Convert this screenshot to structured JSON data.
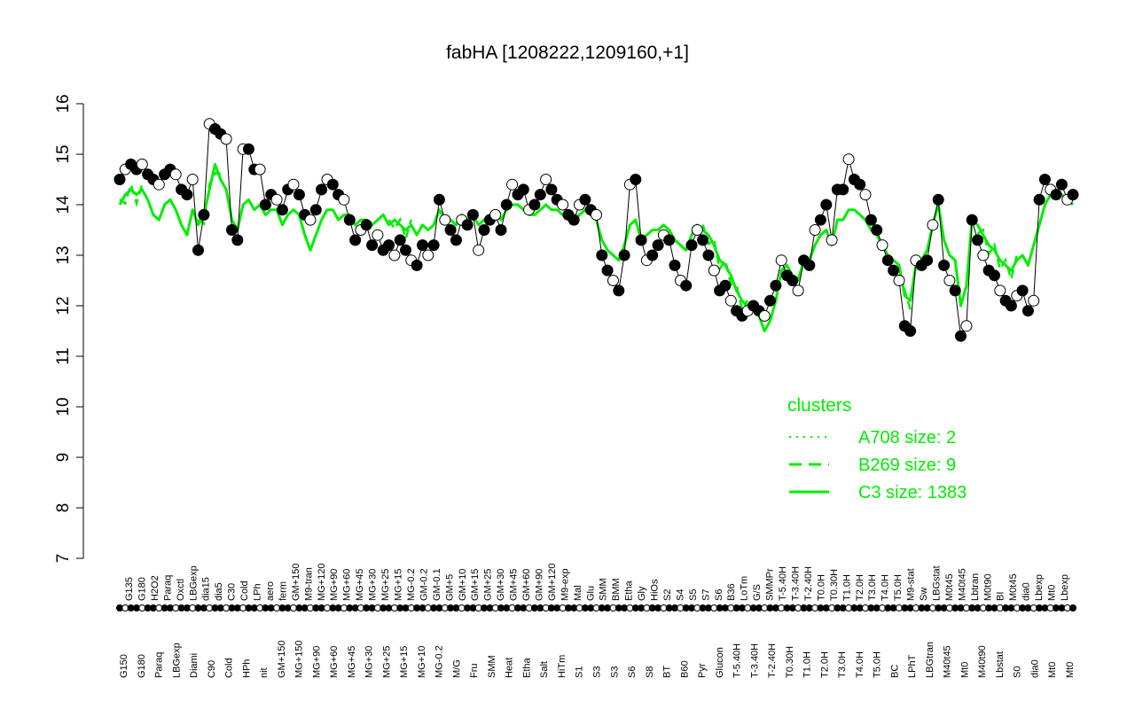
{
  "chart_data": {
    "type": "line",
    "title": "fabHA [1208222,1209160,+1]",
    "xlabel": "",
    "ylabel": "",
    "ylim": [
      7,
      16
    ],
    "yticks": [
      7,
      8,
      9,
      10,
      11,
      12,
      13,
      14,
      15,
      16
    ],
    "grid": false,
    "legend": {
      "title": "clusters",
      "placement": "bottom-right",
      "entries": [
        {
          "label": "A708 size: 2",
          "style": "dotted"
        },
        {
          "label": "B269 size: 9",
          "style": "dashed"
        },
        {
          "label": "C3 size: 1383",
          "style": "solid"
        }
      ]
    },
    "line_color": "#00ee00",
    "points_fill_dark": "#000000",
    "points_fill_light": "#ffffff",
    "categories_top": [
      "G135",
      "G180",
      "H2O2",
      "Paraq",
      "Oxctl",
      "LBGexp",
      "dia15",
      "dia5",
      "C30",
      "Cold",
      "LPh",
      "aero",
      "ferm",
      "GM+150",
      "M9-tran",
      "MG+120",
      "MG+90",
      "MG+60",
      "MG+45",
      "MG+30",
      "MG+25",
      "MG+15",
      "MG-0.2",
      "GM-0.2",
      "GM-0.1",
      "GM+5",
      "GM+10",
      "GM+15",
      "GM+25",
      "GM+30",
      "GM+45",
      "GM+60",
      "GM+90",
      "GM+120",
      "M9-exp",
      "Mal",
      "Glu",
      "SMM",
      "BMM",
      "Etha",
      "Gly",
      "HiOs",
      "S2",
      "S4",
      "S5",
      "S7",
      "S6",
      "B36",
      "LoTm",
      "G/S",
      "SMMPr",
      "T-5.40H",
      "T-3.40H",
      "T-2.40H",
      "T0.0H",
      "T0.30H",
      "T1.0H",
      "T2.0H",
      "T3.0H",
      "T4.0H",
      "T5.0H",
      "M9-stat",
      "Sw",
      "LBGstat",
      "M0t45",
      "M40t45",
      "Lbtran",
      "M0t90",
      "BI",
      "M0t45",
      "dia0",
      "Lbexp",
      "Mt0",
      "Lbexp"
    ],
    "categories_bottom": [
      "G150",
      "G180",
      "Paraq",
      "LBGexp",
      "Diami",
      "C90",
      "Cold",
      "HPh",
      "nit",
      "GM+150",
      "MG+150",
      "MG+90",
      "MG+60",
      "MG+45",
      "MG+30",
      "MG+25",
      "MG+15",
      "MG+10",
      "MG-0.2",
      "M/G",
      "Fru",
      "SMM",
      "Heat",
      "Etha",
      "Salt",
      "HiTm",
      "S1",
      "S3",
      "S3",
      "S6",
      "S8",
      "BT",
      "B60",
      "Pyr",
      "Glucon",
      "T-5.40H",
      "T-3.40H",
      "T-2.40H",
      "T0.30H",
      "T1.0H",
      "T2.0H",
      "T3.0H",
      "T4.0H",
      "T5.0H",
      "BC",
      "LPhT",
      "LBGtran",
      "M40t45",
      "Mt0",
      "M40t90",
      "Lbstat",
      "S0",
      "dia0",
      "Mt0",
      "Mt0"
    ],
    "series": [
      {
        "name": "points",
        "values": [
          14.5,
          14.7,
          14.8,
          14.7,
          14.8,
          14.6,
          14.5,
          14.4,
          14.6,
          14.7,
          14.6,
          14.3,
          14.2,
          14.5,
          13.1,
          13.8,
          15.6,
          15.5,
          15.4,
          15.3,
          13.5,
          13.3,
          15.1,
          15.1,
          14.7,
          14.7,
          14.0,
          14.2,
          14.1,
          13.9,
          14.3,
          14.4,
          14.2,
          13.8,
          13.7,
          13.9,
          14.3,
          14.5,
          14.4,
          14.2,
          14.1,
          13.7,
          13.3,
          13.5,
          13.6,
          13.2,
          13.4,
          13.1,
          13.2,
          13.0,
          13.3,
          13.1,
          12.9,
          12.8,
          13.2,
          13.0,
          13.2,
          14.1,
          13.7,
          13.5,
          13.3,
          13.7,
          13.6,
          13.8,
          13.1,
          13.5,
          13.7,
          13.8,
          13.5,
          14.0,
          14.4,
          14.2,
          14.3,
          13.9,
          14.0,
          14.2,
          14.5,
          14.3,
          14.1,
          14.0,
          13.8,
          13.7,
          14.0,
          14.1,
          13.9,
          13.8,
          13.0,
          12.7,
          12.5,
          12.3,
          13.0,
          14.4,
          14.5,
          13.3,
          12.9,
          13.0,
          13.2,
          13.4,
          13.3,
          12.8,
          12.5,
          12.4,
          13.2,
          13.5,
          13.3,
          13.0,
          12.7,
          12.3,
          12.4,
          12.1,
          11.9,
          11.8,
          11.9,
          12.0,
          11.9,
          11.8,
          12.1,
          12.4,
          12.9,
          12.6,
          12.5,
          12.3,
          12.9,
          12.8,
          13.5,
          13.7,
          14.0,
          13.3,
          14.3,
          14.3,
          14.9,
          14.5,
          14.4,
          14.2,
          13.7,
          13.5,
          13.2,
          12.9,
          12.7,
          12.5,
          11.6,
          11.5,
          12.9,
          12.8,
          12.9,
          13.6,
          14.1,
          12.8,
          12.5,
          12.3,
          11.4,
          11.6,
          13.7,
          13.3,
          13.0,
          12.7,
          12.6,
          12.3,
          12.1,
          12.0,
          12.2,
          12.3,
          11.9,
          12.1,
          14.1,
          14.5,
          14.3,
          14.2,
          14.4,
          14.1,
          14.2
        ]
      },
      {
        "name": "C3 size: 1383",
        "values": [
          14.0,
          14.2,
          14.3,
          14.2,
          14.3,
          14.1,
          13.8,
          13.7,
          14.0,
          14.1,
          13.9,
          13.6,
          13.4,
          13.9,
          13.6,
          13.8,
          14.3,
          14.8,
          14.5,
          14.3,
          13.7,
          13.5,
          14.0,
          14.1,
          13.9,
          14.0,
          13.8,
          13.9,
          13.9,
          13.6,
          13.8,
          13.9,
          13.8,
          13.4,
          13.1,
          13.4,
          13.7,
          13.9,
          13.9,
          13.7,
          13.8,
          13.8,
          13.6,
          13.7,
          13.7,
          13.6,
          13.7,
          13.8,
          13.6,
          13.7,
          13.6,
          13.5,
          13.6,
          13.4,
          13.6,
          13.5,
          13.6,
          13.9,
          13.7,
          13.7,
          13.6,
          13.8,
          13.7,
          13.8,
          13.6,
          13.7,
          13.8,
          13.8,
          13.7,
          13.9,
          14.0,
          14.0,
          13.9,
          13.8,
          13.8,
          13.9,
          14.0,
          13.9,
          13.9,
          13.8,
          13.8,
          13.7,
          13.8,
          13.9,
          13.8,
          13.7,
          13.3,
          13.1,
          13.0,
          12.9,
          13.2,
          13.6,
          13.7,
          13.3,
          13.4,
          13.5,
          13.5,
          13.6,
          13.5,
          13.3,
          13.2,
          13.1,
          13.4,
          13.6,
          13.5,
          13.4,
          13.2,
          12.9,
          12.8,
          12.6,
          12.3,
          12.1,
          12.0,
          12.0,
          11.8,
          11.5,
          11.7,
          12.1,
          12.7,
          12.8,
          12.6,
          12.5,
          12.9,
          12.9,
          13.2,
          13.4,
          13.5,
          13.2,
          13.7,
          13.7,
          13.9,
          13.9,
          13.8,
          13.7,
          13.5,
          13.4,
          13.2,
          13.0,
          12.9,
          12.8,
          12.2,
          12.1,
          12.8,
          12.9,
          13.1,
          13.6,
          14.0,
          13.3,
          13.0,
          12.9,
          12.0,
          12.4,
          13.7,
          13.6,
          13.4,
          13.2,
          13.1,
          12.9,
          12.8,
          12.7,
          12.9,
          13.0,
          12.8,
          13.2,
          13.6,
          14.0,
          14.2,
          14.3,
          14.2,
          14.1,
          14.0
        ]
      }
    ]
  }
}
